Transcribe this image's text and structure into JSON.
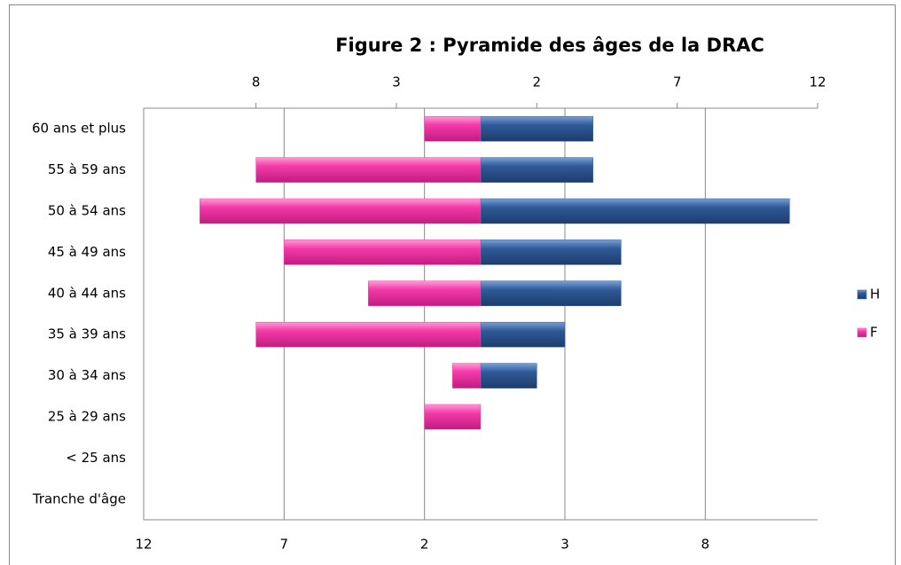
{
  "chart_data": {
    "type": "bar",
    "orientation": "horizontal",
    "title": "Figure 2 : Pyramide des âges de la DRAC",
    "categories": [
      "60 ans et plus",
      "55 à 59 ans",
      "50 à 54 ans",
      "45 à 49 ans",
      "40 à 44 ans",
      "35 à 39 ans",
      "30 à 34 ans",
      "25 à 29 ans",
      "< 25 ans",
      "Tranche d'âge"
    ],
    "series": [
      {
        "name": "H",
        "color": "#2f5a98",
        "values": [
          4,
          4,
          11,
          5,
          5,
          3,
          2,
          0,
          0,
          null
        ]
      },
      {
        "name": "F",
        "color": "#f43aa8",
        "values": [
          -2,
          -8,
          -10,
          -7,
          -4,
          -8,
          -1,
          -2,
          0,
          null
        ]
      }
    ],
    "xlim": [
      -12,
      12
    ],
    "xticks": [
      {
        "value": -12,
        "label": "12"
      },
      {
        "value": -7,
        "label": "7"
      },
      {
        "value": -2,
        "label": "2"
      },
      3,
      8
    ],
    "x2lim": [
      -12,
      12
    ],
    "x2ticks": [
      {
        "value": -8,
        "label": "8"
      },
      {
        "value": -3,
        "label": "3"
      },
      2,
      7,
      12
    ],
    "grid": true,
    "legend": "right"
  }
}
